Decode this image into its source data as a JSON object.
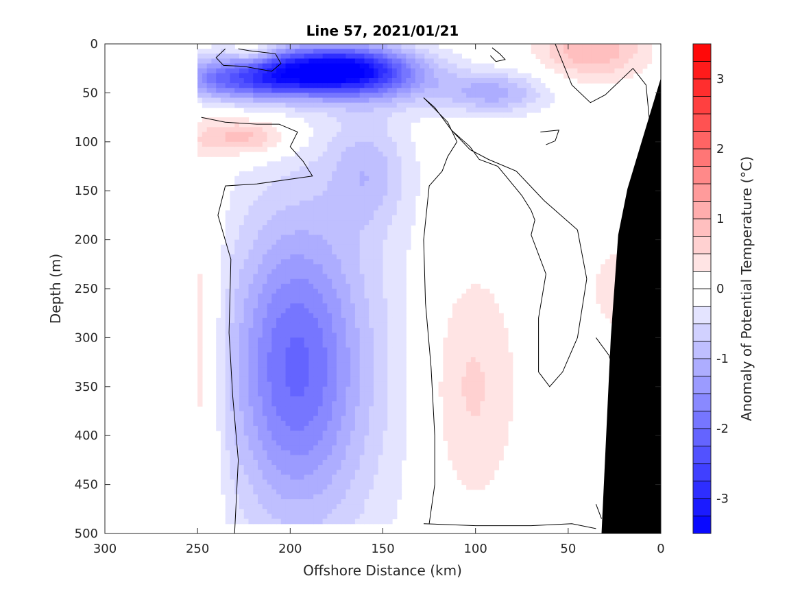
{
  "chart_data": {
    "type": "heatmap",
    "title": "Line 57, 2021/01/21",
    "xlabel": "Offshore Distance (km)",
    "ylabel": "Depth (m)",
    "colorbar_label": "Anomaly of Potential Temperature (°C)",
    "xlim": [
      300,
      0
    ],
    "ylim": [
      0,
      500
    ],
    "x_reversed": true,
    "y_reversed": true,
    "x_ticks": [
      300,
      250,
      200,
      150,
      100,
      50,
      0
    ],
    "y_ticks": [
      0,
      50,
      100,
      150,
      200,
      250,
      300,
      350,
      400,
      450,
      500
    ],
    "x_tick_labels": [
      "300",
      "250",
      "200",
      "150",
      "100",
      "50",
      "0"
    ],
    "y_tick_labels": [
      "0",
      "50",
      "100",
      "150",
      "200",
      "250",
      "300",
      "350",
      "400",
      "450",
      "500"
    ],
    "colorbar": {
      "range": [
        -3.5,
        3.5
      ],
      "step": 0.25,
      "ticks": [
        -3,
        -2,
        -1,
        0,
        1,
        2,
        3
      ],
      "tick_labels": [
        "-3",
        "-2",
        "-1",
        "0",
        "1",
        "2",
        "3"
      ],
      "neg_color": "#0000ff",
      "pos_color": "#ff0000",
      "zero_color": "#ffffff"
    },
    "data_extent_x": [
      250,
      0
    ],
    "data_extent_depth": [
      0,
      490
    ],
    "anomaly_features": [
      {
        "label": "cold surface core",
        "x": 188,
        "depth": 25,
        "sx": 30,
        "sy": 16,
        "value": -2.6
      },
      {
        "label": "cold surface extension",
        "x": 215,
        "depth": 40,
        "sx": 25,
        "sy": 14,
        "value": -1.5
      },
      {
        "label": "cold surface extension east",
        "x": 165,
        "depth": 30,
        "sx": 20,
        "sy": 20,
        "value": -1.3
      },
      {
        "label": "cold near-surface",
        "x": 140,
        "depth": 35,
        "sx": 22,
        "sy": 20,
        "value": -0.7
      },
      {
        "label": "cold offshore top",
        "x": 245,
        "depth": 35,
        "sx": 12,
        "sy": 15,
        "value": -0.7
      },
      {
        "label": "cold lobe",
        "x": 158,
        "depth": 130,
        "sx": 15,
        "sy": 40,
        "value": -0.7
      },
      {
        "label": "cold patch 90 km",
        "x": 90,
        "depth": 50,
        "sx": 20,
        "sy": 15,
        "value": -1.1
      },
      {
        "label": "cold deep core",
        "x": 198,
        "depth": 330,
        "sx": 24,
        "sy": 100,
        "value": -1.5
      },
      {
        "label": "cold deep broad",
        "x": 185,
        "depth": 330,
        "sx": 40,
        "sy": 170,
        "value": -0.6
      },
      {
        "label": "warm lens 225 km",
        "x": 225,
        "depth": 95,
        "sx": 18,
        "sy": 14,
        "value": 1.0
      },
      {
        "label": "warm nearshore surface",
        "x": 37,
        "depth": 5,
        "sx": 20,
        "sy": 22,
        "value": 1.0
      },
      {
        "label": "warm surface patch",
        "x": 220,
        "depth": 8,
        "sx": 8,
        "sy": 8,
        "value": 0.7
      },
      {
        "label": "warm subsurface band",
        "x": 103,
        "depth": 350,
        "sx": 18,
        "sy": 90,
        "value": 0.6
      },
      {
        "label": "warm offshore edge",
        "x": 248,
        "depth": 320,
        "sx": 8,
        "sy": 140,
        "value": 0.6
      },
      {
        "label": "warm slope patch",
        "x": 25,
        "depth": 250,
        "sx": 8,
        "sy": 30,
        "value": 0.5
      }
    ],
    "bathymetry_depth_at_x": [
      {
        "x": 0,
        "depth": 35
      },
      {
        "x": 8,
        "depth": 85
      },
      {
        "x": 18,
        "depth": 148
      },
      {
        "x": 23,
        "depth": 195
      },
      {
        "x": 27,
        "depth": 300
      },
      {
        "x": 32,
        "depth": 500
      }
    ],
    "zero_contours": [
      [
        [
          248,
          75
        ],
        [
          235,
          80
        ],
        [
          218,
          82
        ],
        [
          206,
          82
        ],
        [
          196,
          90
        ],
        [
          200,
          105
        ],
        [
          193,
          120
        ],
        [
          188,
          135
        ],
        [
          218,
          143
        ],
        [
          235,
          145
        ],
        [
          239,
          175
        ],
        [
          232,
          220
        ],
        [
          233,
          295
        ],
        [
          231,
          360
        ],
        [
          228,
          425
        ],
        [
          230,
          500
        ]
      ],
      [
        [
          228,
          5
        ],
        [
          222,
          7
        ],
        [
          208,
          10
        ],
        [
          205,
          20
        ],
        [
          210,
          28
        ],
        [
          225,
          23
        ],
        [
          236,
          22
        ],
        [
          240,
          14
        ],
        [
          235,
          5
        ]
      ],
      [
        [
          128,
          55
        ],
        [
          115,
          80
        ],
        [
          110,
          100
        ],
        [
          115,
          115
        ],
        [
          118,
          130
        ],
        [
          125,
          145
        ],
        [
          128,
          200
        ],
        [
          127,
          265
        ],
        [
          124,
          330
        ],
        [
          122,
          400
        ],
        [
          122,
          450
        ],
        [
          125,
          490
        ]
      ],
      [
        [
          128,
          55
        ],
        [
          122,
          65
        ],
        [
          113,
          88
        ],
        [
          103,
          105
        ],
        [
          98,
          118
        ],
        [
          88,
          125
        ],
        [
          75,
          155
        ],
        [
          70,
          170
        ],
        [
          68,
          180
        ],
        [
          70,
          195
        ],
        [
          62,
          235
        ],
        [
          66,
          280
        ],
        [
          66,
          335
        ],
        [
          60,
          350
        ],
        [
          53,
          335
        ],
        [
          45,
          300
        ],
        [
          40,
          240
        ],
        [
          45,
          190
        ],
        [
          63,
          160
        ],
        [
          78,
          130
        ],
        [
          93,
          118
        ],
        [
          103,
          108
        ],
        [
          113,
          88
        ],
        [
          122,
          65
        ]
      ],
      [
        [
          57,
          0
        ],
        [
          48,
          42
        ],
        [
          38,
          60
        ],
        [
          30,
          52
        ],
        [
          15,
          25
        ],
        [
          8,
          42
        ],
        [
          5,
          100
        ],
        [
          3,
          160
        ]
      ],
      [
        [
          91,
          4
        ],
        [
          87,
          10
        ],
        [
          84,
          16
        ],
        [
          89,
          18
        ],
        [
          92,
          12
        ]
      ],
      [
        [
          65,
          90
        ],
        [
          55,
          88
        ],
        [
          57,
          99
        ],
        [
          62,
          103
        ]
      ],
      [
        [
          128,
          490
        ],
        [
          100,
          492
        ],
        [
          70,
          492
        ],
        [
          48,
          490
        ],
        [
          35,
          495
        ]
      ],
      [
        [
          35,
          300
        ],
        [
          28,
          318
        ],
        [
          26,
          330
        ]
      ],
      [
        [
          35,
          470
        ],
        [
          32,
          485
        ]
      ]
    ]
  }
}
